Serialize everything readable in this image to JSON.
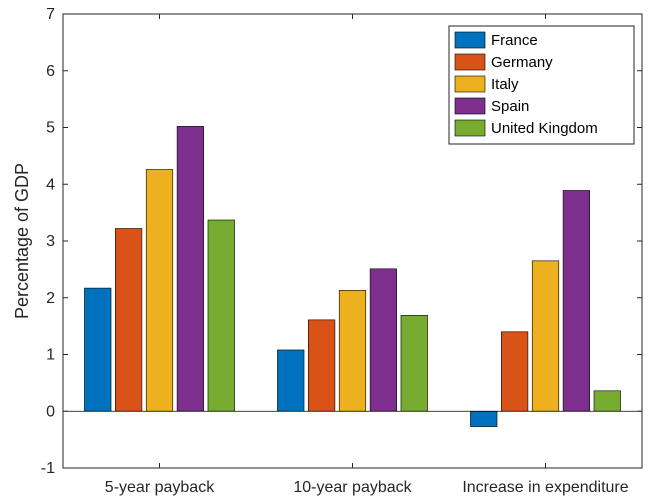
{
  "chart_data": {
    "type": "bar",
    "categories": [
      "5-year payback",
      "10-year payback",
      "Increase in expenditure"
    ],
    "series": [
      {
        "name": "France",
        "values": [
          2.17,
          1.08,
          -0.27
        ],
        "color": "#0072BD"
      },
      {
        "name": "Germany",
        "values": [
          3.22,
          1.61,
          1.4
        ],
        "color": "#D95319"
      },
      {
        "name": "Italy",
        "values": [
          4.26,
          2.13,
          2.65
        ],
        "color": "#EDB120"
      },
      {
        "name": "Spain",
        "values": [
          5.02,
          2.51,
          3.89
        ],
        "color": "#7E2F8E"
      },
      {
        "name": "United Kingdom",
        "values": [
          3.37,
          1.69,
          0.36
        ],
        "color": "#77AC30"
      }
    ],
    "title": "",
    "xlabel": "",
    "ylabel": "Percentage of GDP",
    "ylim": [
      -1,
      7
    ],
    "yticks": [
      "-1",
      "0",
      "1",
      "2",
      "3",
      "4",
      "5",
      "6",
      "7"
    ],
    "grid": false,
    "legend_position": "top-right"
  }
}
